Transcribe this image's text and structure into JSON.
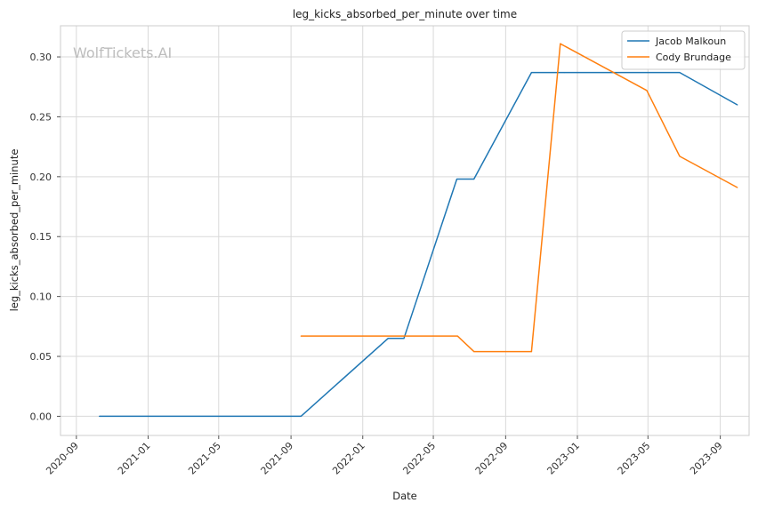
{
  "chart_data": {
    "type": "line",
    "title": "leg_kicks_absorbed_per_minute over time",
    "xlabel": "Date",
    "ylabel": "leg_kicks_absorbed_per_minute",
    "watermark": "WolfTickets.AI",
    "xlim": [
      "2020-08-05",
      "2023-10-20"
    ],
    "ylim": [
      -0.016,
      0.326
    ],
    "x_ticks": [
      "2020-09",
      "2021-01",
      "2021-05",
      "2021-09",
      "2022-01",
      "2022-05",
      "2022-09",
      "2023-01",
      "2023-05",
      "2023-09"
    ],
    "y_ticks": [
      0.0,
      0.05,
      0.1,
      0.15,
      0.2,
      0.25,
      0.3
    ],
    "y_tick_labels": [
      "0.00",
      "0.05",
      "0.10",
      "0.15",
      "0.20",
      "0.25",
      "0.30"
    ],
    "grid": true,
    "legend_position": "top-right",
    "series": [
      {
        "name": "Jacob Malkoun",
        "color": "#1f77b4",
        "x": [
          "2020-10-10",
          "2021-09-18",
          "2022-02-13",
          "2022-03-12",
          "2022-06-10",
          "2022-07-09",
          "2022-10-15",
          "2022-12-10",
          "2023-06-24",
          "2023-09-30"
        ],
        "y": [
          0.0,
          0.0,
          0.065,
          0.065,
          0.198,
          0.198,
          0.287,
          0.287,
          0.287,
          0.26
        ]
      },
      {
        "name": "Cody Brundage",
        "color": "#ff7f0e",
        "x": [
          "2021-09-18",
          "2022-06-11",
          "2022-07-09",
          "2022-10-15",
          "2022-12-03",
          "2023-04-29",
          "2023-06-24",
          "2023-09-30"
        ],
        "y": [
          0.067,
          0.067,
          0.054,
          0.054,
          0.311,
          0.272,
          0.217,
          0.191
        ]
      }
    ]
  }
}
